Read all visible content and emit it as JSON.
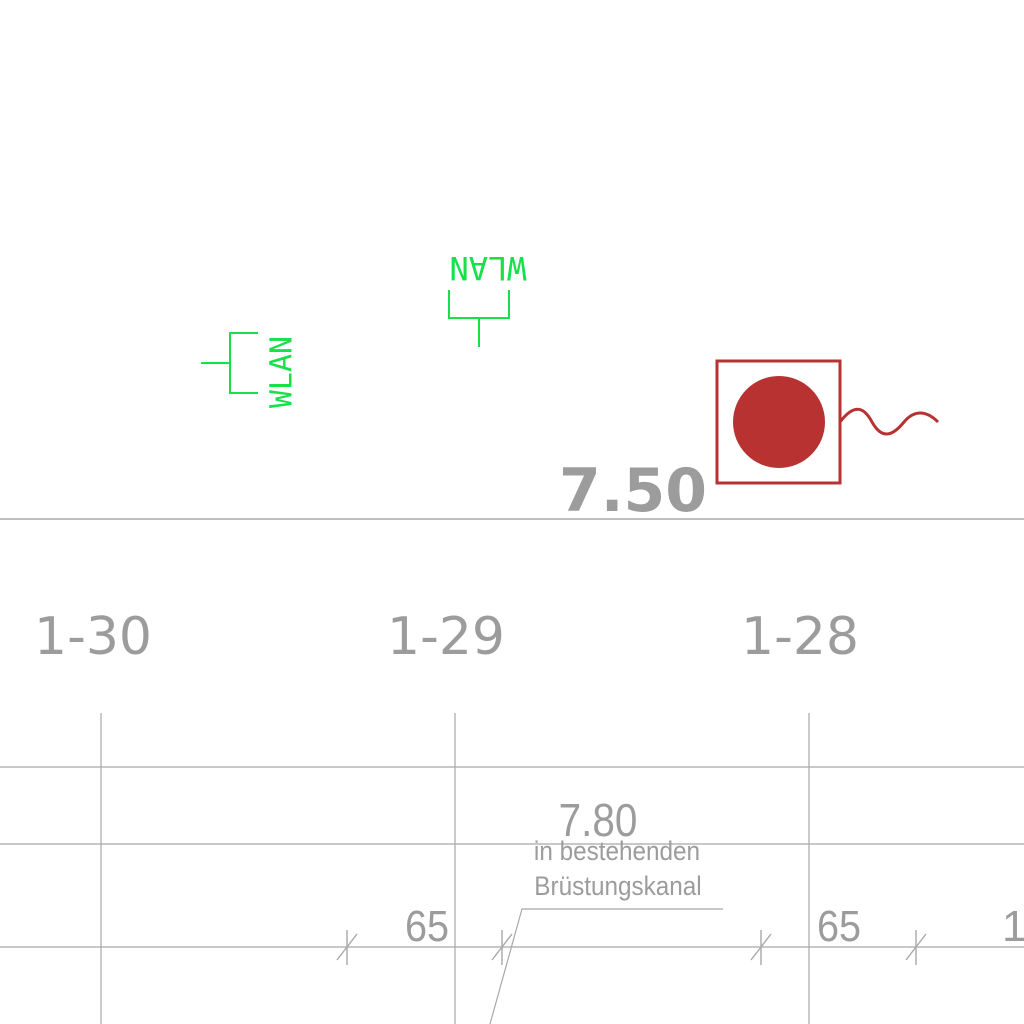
{
  "plan": {
    "level_marker": "7.50",
    "axes": {
      "axis_1": "1-30",
      "axis_2": "1-29",
      "axis_3": "1-28"
    },
    "wlan_left": "WLAN",
    "wlan_top": "WLAN",
    "dimensions": {
      "overall": "7.80",
      "seg_left": "65",
      "seg_right": "65",
      "seg_cut": "1"
    },
    "note": {
      "line1": "in bestehenden",
      "line2": "Brüstungskanal"
    },
    "colors": {
      "dimension_gray": "#9c9c9c",
      "line_gray": "#a8a8a8",
      "wlan_green": "#16e04a",
      "device_red": "#b83232"
    },
    "icons": {
      "wlan_symbol": "wlan-access-point-icon",
      "device_symbol": "device-outlet-icon"
    }
  }
}
